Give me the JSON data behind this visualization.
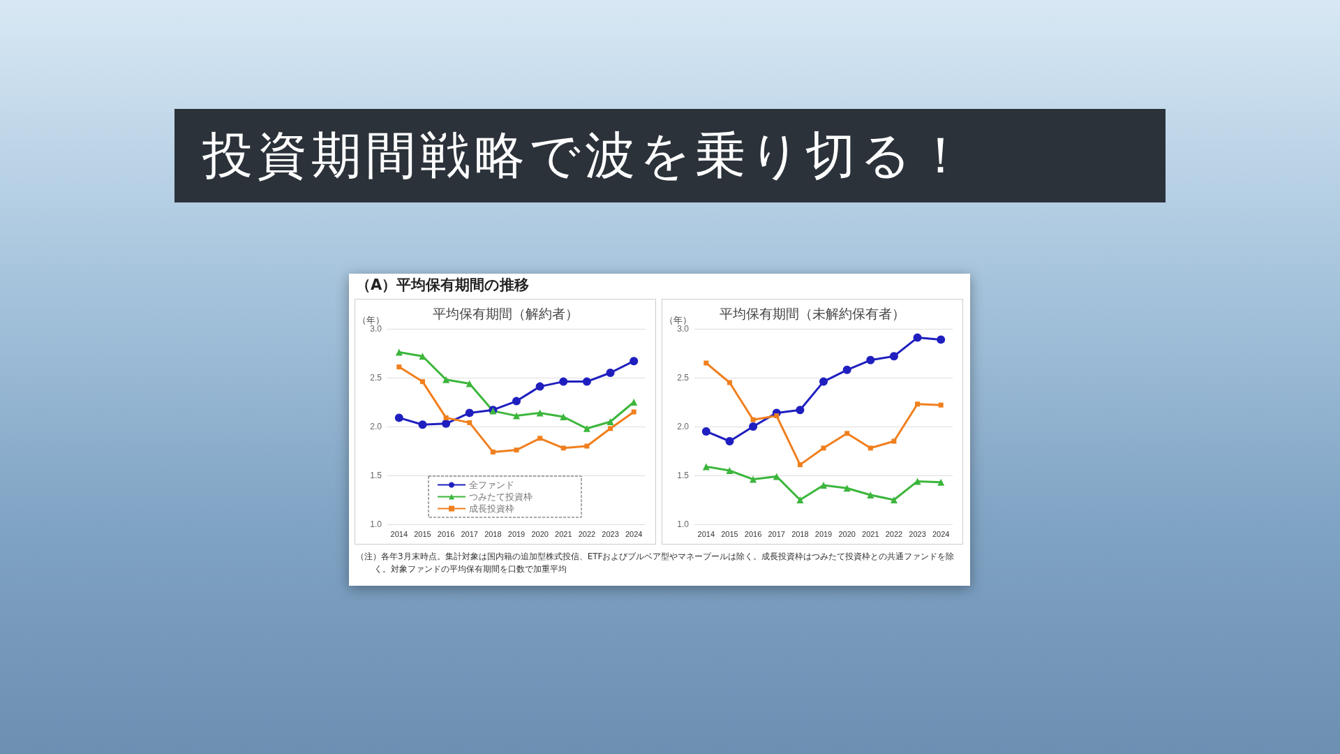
{
  "chart_data": [
    {
      "type": "line",
      "title": "平均保有期間（解約者）",
      "ylabel": "（年）",
      "annotations": [
        "投資期間戦略で波を乗り切る！",
        "（A）平均保有期間の推移",
        "（注）各年3月末時点。集計対象は国内籍の追加型株式投信、ETFおよびブルベア型やマネープールは除く。成長投資枠はつみたて投資枠との共通ファンドを除く。対象ファンドの平均保有期間を口数で加重平均"
      ],
      "categories": [
        "2014",
        "2015",
        "2016",
        "2017",
        "2018",
        "2019",
        "2020",
        "2021",
        "2022",
        "2023",
        "2024"
      ],
      "series": [
        {
          "name": "全ファンド",
          "color": "#1f1fbf",
          "marker": "circle",
          "values": [
            2.09,
            2.02,
            2.03,
            2.14,
            2.17,
            2.26,
            2.41,
            2.46,
            2.46,
            2.55,
            2.67
          ]
        },
        {
          "name": "つみたて投資枠",
          "color": "#3cb63c",
          "marker": "triangle",
          "values": [
            2.76,
            2.72,
            2.48,
            2.44,
            2.16,
            2.11,
            2.14,
            2.1,
            1.98,
            2.05,
            2.25
          ]
        },
        {
          "name": "成長投資枠",
          "color": "#f07f1e",
          "marker": "square",
          "values": [
            2.61,
            2.46,
            2.09,
            2.04,
            1.74,
            1.76,
            1.88,
            1.78,
            1.8,
            1.98,
            2.15
          ]
        }
      ],
      "ylim": [
        1.0,
        3.0
      ],
      "yticks": [
        {
          "value": 1.0,
          "label": "1.0"
        },
        {
          "value": 1.5,
          "label": "1.5"
        },
        {
          "value": 2.0,
          "label": "2.0"
        },
        {
          "value": 2.5,
          "label": "2.5"
        },
        {
          "value": 3.0,
          "label": "3.0"
        }
      ],
      "grid": "y",
      "legend": "bottom"
    },
    {
      "type": "line",
      "title": "平均保有期間（未解約保有者）",
      "ylabel": "（年）",
      "categories": [
        "2014",
        "2015",
        "2016",
        "2017",
        "2018",
        "2019",
        "2020",
        "2021",
        "2022",
        "2023",
        "2024"
      ],
      "series": [
        {
          "color": "#1f1fbf",
          "marker": "circle",
          "values": [
            1.95,
            1.85,
            2.0,
            2.14,
            2.17,
            2.46,
            2.58,
            2.68,
            2.72,
            2.91,
            2.89
          ]
        },
        {
          "color": "#3cb63c",
          "marker": "triangle",
          "values": [
            1.59,
            1.55,
            1.46,
            1.49,
            1.25,
            1.4,
            1.37,
            1.3,
            1.25,
            1.44,
            1.43
          ]
        },
        {
          "color": "#f07f1e",
          "marker": "square",
          "values": [
            2.65,
            2.45,
            2.07,
            2.11,
            1.61,
            1.78,
            1.93,
            1.78,
            1.85,
            2.23,
            2.22
          ]
        }
      ],
      "ylim": [
        1.0,
        3.0
      ],
      "yticks": [
        {
          "value": 1.0,
          "label": "1.0"
        },
        {
          "value": 1.5,
          "label": "1.5"
        },
        {
          "value": 2.0,
          "label": "2.0"
        },
        {
          "value": 2.5,
          "label": "2.5"
        },
        {
          "value": 3.0,
          "label": "3.0"
        }
      ],
      "grid": "y",
      "legend": false
    }
  ]
}
